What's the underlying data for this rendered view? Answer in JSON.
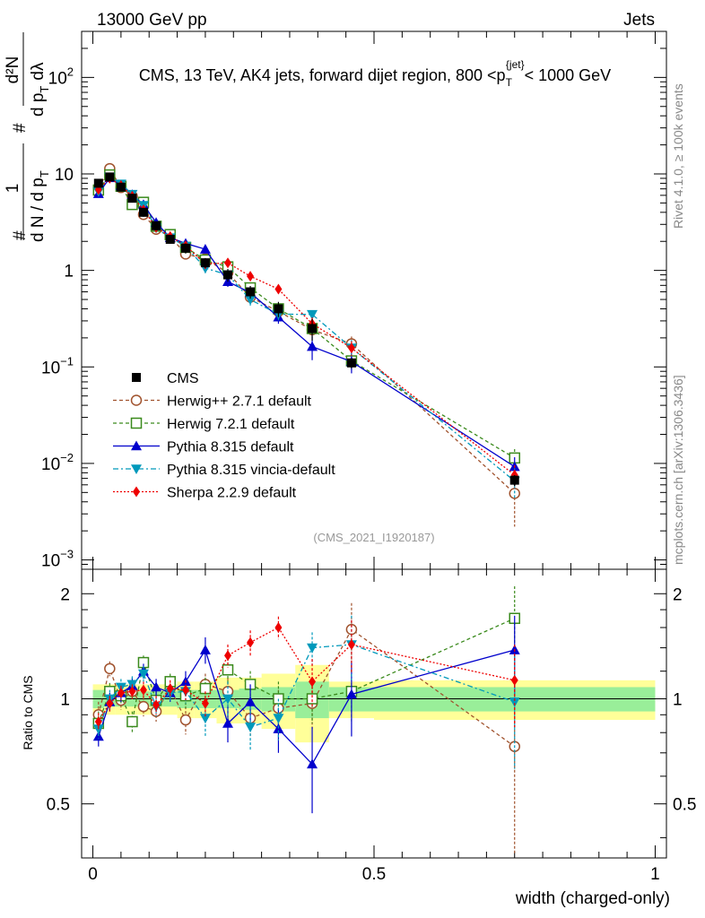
{
  "header": {
    "left": "13000 GeV pp",
    "right": "Jets"
  },
  "side_labels": {
    "rivet": "Rivet 4.1.0, ≥ 100k events",
    "mcplots": "mcplots.cern.ch [arXiv:1306.3436]"
  },
  "chart_data": {
    "type": "line",
    "title": "CMS, 13 TeV, AK4 jets, forward dijet region, 800 <p",
    "title_sup": "{jet}",
    "title_sub": "T",
    "title_tail": "< 1000 GeV",
    "analysis_tag": "(CMS_2021_I1920187)",
    "ylabel_parts": {
      "lead": "#",
      "num1": "1",
      "den1": "d N / d p",
      "den1_sub": "T",
      "mid": "#",
      "num2": "d²N",
      "den2": "d p",
      "den2_sub": "T",
      "den2_tail": "dλ"
    },
    "xlabel": "width (charged-only)",
    "ratio_ylabel": "Ratio to CMS",
    "xlim": [
      -0.02,
      1.02
    ],
    "ylim": [
      0.0008,
      300
    ],
    "ratio_ylim": [
      0.35,
      2.35
    ],
    "x_ticks": [
      {
        "v": 0,
        "label": "0"
      },
      {
        "v": 0.5,
        "label": "0.5"
      },
      {
        "v": 1,
        "label": "1"
      }
    ],
    "y_ticks": [
      {
        "v": 0.001,
        "base": "10",
        "exp": "−3"
      },
      {
        "v": 0.01,
        "base": "10",
        "exp": "−2"
      },
      {
        "v": 0.1,
        "base": "10",
        "exp": "−1"
      },
      {
        "v": 1,
        "base": "1",
        "exp": ""
      },
      {
        "v": 10,
        "base": "10",
        "exp": ""
      },
      {
        "v": 100,
        "base": "10",
        "exp": "2"
      }
    ],
    "ratio_ticks": [
      {
        "v": 0.5,
        "label": "0.5"
      },
      {
        "v": 1,
        "label": "1"
      },
      {
        "v": 2,
        "label": "2"
      }
    ],
    "bins": [
      {
        "lo": 0.0,
        "hi": 0.02,
        "x": 0.01
      },
      {
        "lo": 0.02,
        "hi": 0.04,
        "x": 0.03
      },
      {
        "lo": 0.04,
        "hi": 0.06,
        "x": 0.05
      },
      {
        "lo": 0.06,
        "hi": 0.08,
        "x": 0.07
      },
      {
        "lo": 0.08,
        "hi": 0.1,
        "x": 0.09
      },
      {
        "lo": 0.1,
        "hi": 0.125,
        "x": 0.1125
      },
      {
        "lo": 0.125,
        "hi": 0.15,
        "x": 0.1375
      },
      {
        "lo": 0.15,
        "hi": 0.18,
        "x": 0.165
      },
      {
        "lo": 0.18,
        "hi": 0.22,
        "x": 0.2
      },
      {
        "lo": 0.22,
        "hi": 0.26,
        "x": 0.24
      },
      {
        "lo": 0.26,
        "hi": 0.3,
        "x": 0.28
      },
      {
        "lo": 0.3,
        "hi": 0.36,
        "x": 0.33
      },
      {
        "lo": 0.36,
        "hi": 0.42,
        "x": 0.39
      },
      {
        "lo": 0.42,
        "hi": 0.5,
        "x": 0.46
      },
      {
        "lo": 0.5,
        "hi": 1.0,
        "x": 0.75
      }
    ],
    "data": {
      "name": "CMS",
      "color": "#000000",
      "values": [
        8.0,
        9.3,
        7.3,
        5.6,
        4.0,
        2.9,
        2.1,
        1.7,
        1.2,
        0.9,
        0.6,
        0.4,
        0.25,
        0.11,
        0.0067
      ],
      "band_stat": [
        0.06,
        0.05,
        0.05,
        0.05,
        0.05,
        0.05,
        0.05,
        0.06,
        0.06,
        0.06,
        0.07,
        0.08,
        0.12,
        0.08,
        0.08
      ],
      "band_tot": [
        0.1,
        0.1,
        0.1,
        0.1,
        0.1,
        0.1,
        0.1,
        0.12,
        0.12,
        0.15,
        0.15,
        0.18,
        0.25,
        0.12,
        0.13
      ]
    },
    "series": [
      {
        "name": "Herwig++ 2.7.1 default",
        "color": "#a0522d",
        "dash": "4,3",
        "marker": "circle-open",
        "ratio": [
          0.9,
          1.22,
          0.99,
          1.05,
          0.95,
          0.92,
          1.07,
          0.87,
          1.1,
          1.05,
          0.88,
          0.94,
          0.97,
          1.58,
          0.73
        ],
        "ratio_err": [
          0.08,
          0.06,
          0.06,
          0.06,
          0.06,
          0.06,
          0.06,
          0.08,
          0.08,
          0.1,
          0.1,
          0.12,
          0.15,
          0.3,
          0.4
        ]
      },
      {
        "name": "Herwig 7.2.1 default",
        "color": "#3a8a1c",
        "dash": "4,3",
        "marker": "square-open",
        "ratio": [
          0.85,
          1.05,
          1.02,
          0.86,
          1.27,
          0.99,
          1.12,
          1.02,
          1.07,
          1.21,
          1.1,
          1.0,
          1.0,
          1.05,
          1.7
        ],
        "ratio_err": [
          0.07,
          0.06,
          0.06,
          0.06,
          0.06,
          0.06,
          0.06,
          0.08,
          0.08,
          0.1,
          0.1,
          0.12,
          0.15,
          0.2,
          0.4
        ]
      },
      {
        "name": "Pythia 8.315 default",
        "color": "#0000cc",
        "dash": "",
        "marker": "triangle-up",
        "ratio": [
          0.78,
          0.98,
          1.04,
          1.09,
          1.2,
          1.08,
          1.04,
          1.12,
          1.38,
          0.85,
          0.98,
          0.82,
          0.65,
          1.03,
          1.38
        ],
        "ratio_err": [
          0.05,
          0.06,
          0.06,
          0.06,
          0.06,
          0.06,
          0.06,
          0.08,
          0.12,
          0.1,
          0.12,
          0.12,
          0.18,
          0.25,
          0.35
        ]
      },
      {
        "name": "Pythia 8.315 vincia-default",
        "color": "#0099bb",
        "dash": "6,3,2,3",
        "marker": "triangle-down",
        "ratio": [
          0.82,
          1.0,
          1.08,
          1.1,
          1.18,
          0.95,
          1.04,
          1.05,
          0.88,
          1.0,
          0.83,
          0.88,
          1.4,
          1.43,
          0.98
        ],
        "ratio_err": [
          0.05,
          0.06,
          0.06,
          0.06,
          0.06,
          0.06,
          0.06,
          0.08,
          0.1,
          0.12,
          0.12,
          0.12,
          0.15,
          0.3,
          0.35
        ]
      },
      {
        "name": "Sherpa 2.2.9 default",
        "color": "#ee0000",
        "dash": "2,2",
        "marker": "diamond",
        "ratio": [
          0.86,
          0.97,
          1.04,
          1.05,
          1.06,
          0.96,
          1.07,
          1.06,
          0.97,
          1.33,
          1.45,
          1.6,
          1.12,
          1.43,
          1.13
        ],
        "ratio_err": [
          0.05,
          0.05,
          0.05,
          0.05,
          0.06,
          0.06,
          0.06,
          0.07,
          0.08,
          0.1,
          0.12,
          0.12,
          0.18,
          0.25,
          0.3
        ]
      }
    ]
  }
}
